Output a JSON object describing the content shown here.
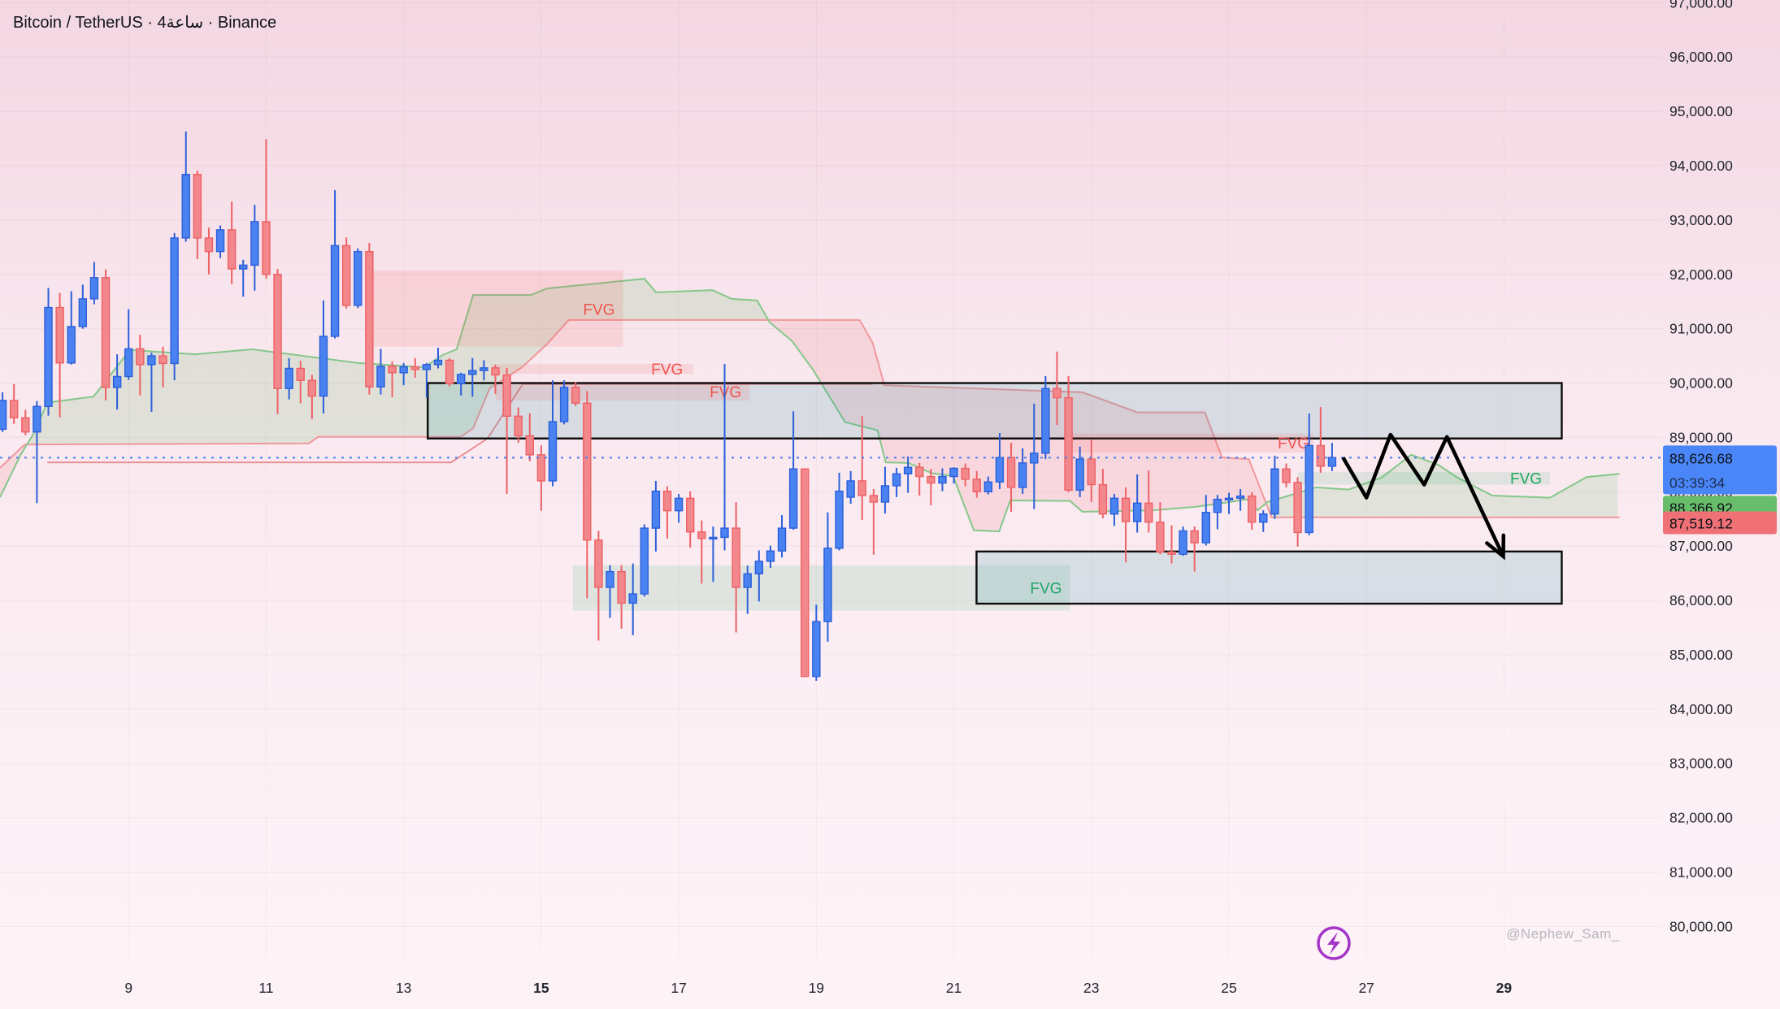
{
  "meta": {
    "symbol_title": "Bitcoin / TetherUS · 4ساعة · Binance",
    "watermark": "@Nephew_Sam_"
  },
  "price_scale_labels": {
    "current_price": "88,626.68",
    "countdown": "03:39:34",
    "indicator_green": "88,366.92",
    "indicator_red": "87,519.12"
  },
  "colors": {
    "bg_top": "#f3d7e2",
    "bg_mid": "#f9e7ee",
    "bg_bottom": "#fdf3f7",
    "up_fill": "#4a83f1",
    "up_border": "#2b5fd9",
    "down_fill": "#f2878c",
    "down_border": "#ee6165",
    "cloud_green_line": "#85c78a",
    "cloud_red_line": "#f0989c",
    "kijun_line": "#e2686c",
    "cloud_green_fill": "#7cc47f",
    "cloud_pink_fill": "#f07f84",
    "teal_box_fill": "#2e99a8",
    "box_border": "#0b0b0b",
    "pink_box_fill": "#ef5350",
    "mint_box_fill": "#2eb56f",
    "dotted_line": "#4a7df0",
    "label_blue_bg": "#4a86f7",
    "label_green_bg": "#68bd6b",
    "label_red_bg": "#ef7175",
    "zigzag": "#000000",
    "lightning": "#a435c8"
  },
  "chart_data": {
    "type": "candlestick",
    "title": "Bitcoin / TetherUS · 4ساعة · Binance",
    "exchange": "Binance",
    "interval": "4h",
    "ylim": [
      78480,
      97050
    ],
    "xlim_days": [
      7.13,
      31.3
    ],
    "y_axis": {
      "min": 80000,
      "max": 97000,
      "step": 1000,
      "tick_format": "#,##0.00"
    },
    "x_axis": {
      "ticks": [
        {
          "t": 9,
          "label": "9"
        },
        {
          "t": 11,
          "label": "11"
        },
        {
          "t": 13,
          "label": "13"
        },
        {
          "t": 15,
          "label": "15",
          "bold": true
        },
        {
          "t": 17,
          "label": "17"
        },
        {
          "t": 19,
          "label": "19"
        },
        {
          "t": 21,
          "label": "21"
        },
        {
          "t": 23,
          "label": "23"
        },
        {
          "t": 25,
          "label": "25"
        },
        {
          "t": 27,
          "label": "27"
        },
        {
          "t": 29,
          "label": "29",
          "bold": true
        }
      ]
    },
    "current_price": 88626.68,
    "indicator_values": {
      "senkou_a": 88366.92,
      "senkou_b": 87519.12
    },
    "candles": {
      "t0": 7.1667,
      "dt": 0.16667,
      "ohlc": [
        [
          89150,
          89830,
          89100,
          89680
        ],
        [
          89680,
          89980,
          89250,
          89360
        ],
        [
          89360,
          89510,
          89040,
          89100
        ],
        [
          89100,
          89670,
          87790,
          89570
        ],
        [
          89570,
          91750,
          89400,
          91390
        ],
        [
          91390,
          91660,
          89370,
          90370
        ],
        [
          90370,
          91690,
          90340,
          91040
        ],
        [
          91040,
          91810,
          91000,
          91550
        ],
        [
          91550,
          92230,
          91450,
          91940
        ],
        [
          91940,
          92090,
          89680,
          89920
        ],
        [
          89920,
          90530,
          89510,
          90120
        ],
        [
          90120,
          91360,
          90060,
          90630
        ],
        [
          90630,
          90890,
          89770,
          90340
        ],
        [
          90340,
          90560,
          89470,
          90500
        ],
        [
          90500,
          90670,
          89920,
          90360
        ],
        [
          90360,
          92760,
          90050,
          92670
        ],
        [
          92670,
          94630,
          92600,
          93840
        ],
        [
          93840,
          93910,
          92280,
          92670
        ],
        [
          92670,
          92860,
          92000,
          92420
        ],
        [
          92420,
          92900,
          92300,
          92820
        ],
        [
          92820,
          93340,
          91820,
          92100
        ],
        [
          92100,
          92270,
          91590,
          92170
        ],
        [
          92170,
          93280,
          91700,
          92970
        ],
        [
          92970,
          94490,
          91920,
          92000
        ],
        [
          92000,
          92100,
          89430,
          89900
        ],
        [
          89900,
          90460,
          89700,
          90270
        ],
        [
          90270,
          90410,
          89630,
          90050
        ],
        [
          90050,
          90150,
          89340,
          89760
        ],
        [
          89760,
          91520,
          89440,
          90860
        ],
        [
          90860,
          93550,
          90820,
          92530
        ],
        [
          92530,
          92680,
          91370,
          91430
        ],
        [
          91430,
          92480,
          91380,
          92420
        ],
        [
          92420,
          92580,
          89790,
          89930
        ],
        [
          89930,
          90630,
          89790,
          90310
        ],
        [
          90310,
          90400,
          89740,
          90190
        ],
        [
          90190,
          90370,
          89960,
          90300
        ],
        [
          90300,
          90460,
          90100,
          90250
        ],
        [
          90250,
          90370,
          89730,
          90340
        ],
        [
          90340,
          90650,
          90270,
          90420
        ],
        [
          90420,
          90460,
          89940,
          89990
        ],
        [
          89990,
          90190,
          89770,
          90160
        ],
        [
          90160,
          90460,
          89750,
          90230
        ],
        [
          90230,
          90420,
          90050,
          90280
        ],
        [
          90280,
          90340,
          89800,
          90150
        ],
        [
          90150,
          90280,
          87960,
          89390
        ],
        [
          89390,
          89550,
          88900,
          89030
        ],
        [
          89030,
          89440,
          88560,
          88680
        ],
        [
          88680,
          88850,
          87650,
          88200
        ],
        [
          88200,
          90050,
          88100,
          89290
        ],
        [
          89290,
          90050,
          89240,
          89920
        ],
        [
          89920,
          90020,
          89580,
          89630
        ],
        [
          89630,
          89850,
          86040,
          87110
        ],
        [
          87110,
          87280,
          85260,
          86240
        ],
        [
          86240,
          86650,
          85680,
          86530
        ],
        [
          86530,
          86650,
          85480,
          85950
        ],
        [
          85950,
          86680,
          85360,
          86120
        ],
        [
          86120,
          87400,
          86070,
          87330
        ],
        [
          87330,
          88200,
          86900,
          88010
        ],
        [
          88010,
          88100,
          87140,
          87650
        ],
        [
          87650,
          87960,
          87430,
          87880
        ],
        [
          87880,
          88010,
          86970,
          87260
        ],
        [
          87260,
          87470,
          86310,
          87140
        ],
        [
          87140,
          87360,
          86340,
          87160
        ],
        [
          87160,
          90350,
          86920,
          87330
        ],
        [
          87330,
          87810,
          85410,
          86240
        ],
        [
          86240,
          86640,
          85750,
          86490
        ],
        [
          86490,
          86920,
          85980,
          86720
        ],
        [
          86720,
          87010,
          86600,
          86910
        ],
        [
          86910,
          87570,
          86790,
          87330
        ],
        [
          87330,
          89480,
          87300,
          88420
        ],
        [
          88420,
          88430,
          84590,
          84600
        ],
        [
          84600,
          85920,
          84520,
          85610
        ],
        [
          85610,
          87620,
          85240,
          86960
        ],
        [
          86960,
          88350,
          86920,
          88010
        ],
        [
          87900,
          88380,
          87780,
          88200
        ],
        [
          88200,
          89390,
          87480,
          87930
        ],
        [
          87930,
          88050,
          86840,
          87810
        ],
        [
          87810,
          88460,
          87600,
          88110
        ],
        [
          88110,
          88440,
          87900,
          88330
        ],
        [
          88330,
          88650,
          87980,
          88450
        ],
        [
          88450,
          88530,
          87930,
          88280
        ],
        [
          88280,
          88420,
          87750,
          88160
        ],
        [
          88160,
          88430,
          88010,
          88280
        ],
        [
          88280,
          88450,
          88150,
          88430
        ],
        [
          88430,
          88520,
          88100,
          88230
        ],
        [
          88230,
          88380,
          87890,
          88000
        ],
        [
          88000,
          88280,
          87950,
          88180
        ],
        [
          88180,
          89080,
          88050,
          88630
        ],
        [
          88630,
          88900,
          87630,
          88080
        ],
        [
          88080,
          88800,
          87960,
          88530
        ],
        [
          88530,
          89620,
          87680,
          88710
        ],
        [
          88710,
          90130,
          88600,
          89900
        ],
        [
          89900,
          90580,
          89230,
          89730
        ],
        [
          89730,
          90130,
          87990,
          88030
        ],
        [
          88030,
          88830,
          87900,
          88600
        ],
        [
          88600,
          88950,
          87810,
          88130
        ],
        [
          88130,
          88420,
          87510,
          87590
        ],
        [
          87590,
          87960,
          87370,
          87880
        ],
        [
          87880,
          88080,
          86700,
          87450
        ],
        [
          87450,
          88320,
          87250,
          87790
        ],
        [
          87790,
          88390,
          87250,
          87440
        ],
        [
          87440,
          87810,
          86850,
          86890
        ],
        [
          86890,
          87380,
          86680,
          86850
        ],
        [
          86850,
          87360,
          86820,
          87280
        ],
        [
          87280,
          87360,
          86530,
          87060
        ],
        [
          87060,
          87940,
          87010,
          87620
        ],
        [
          87620,
          87940,
          87310,
          87860
        ],
        [
          87860,
          87980,
          87590,
          87880
        ],
        [
          87880,
          88050,
          87650,
          87920
        ],
        [
          87920,
          87990,
          87300,
          87440
        ],
        [
          87440,
          87660,
          87260,
          87590
        ],
        [
          87590,
          88660,
          87500,
          88420
        ],
        [
          88420,
          88520,
          88080,
          88170
        ],
        [
          88170,
          88270,
          86990,
          87250
        ],
        [
          87250,
          89440,
          87200,
          88850
        ],
        [
          88850,
          89560,
          88350,
          88470
        ],
        [
          88470,
          88900,
          88380,
          88630
        ]
      ]
    },
    "ichimoku": {
      "senkou_a": [
        [
          7.13,
          87900
        ],
        [
          7.43,
          88680
        ],
        [
          7.61,
          89050
        ],
        [
          7.82,
          89640
        ],
        [
          8.49,
          89750
        ],
        [
          9.02,
          90610
        ],
        [
          9.97,
          90530
        ],
        [
          10.8,
          90620
        ],
        [
          12.33,
          90370
        ],
        [
          13.3,
          90290
        ],
        [
          13.57,
          90520
        ],
        [
          13.77,
          90620
        ],
        [
          14.01,
          91620
        ],
        [
          14.85,
          91620
        ],
        [
          15.08,
          91740
        ],
        [
          16.5,
          91920
        ],
        [
          16.67,
          91670
        ],
        [
          17.49,
          91710
        ],
        [
          17.77,
          91550
        ],
        [
          18.14,
          91520
        ],
        [
          18.32,
          91120
        ],
        [
          18.65,
          90770
        ],
        [
          18.95,
          90250
        ],
        [
          19.42,
          89280
        ],
        [
          19.89,
          89130
        ],
        [
          20.01,
          88540
        ],
        [
          20.34,
          88530
        ],
        [
          20.68,
          88340
        ],
        [
          20.99,
          88290
        ],
        [
          21.29,
          87290
        ],
        [
          21.66,
          87270
        ],
        [
          21.82,
          87840
        ],
        [
          22.69,
          87830
        ],
        [
          22.87,
          87630
        ],
        [
          23.91,
          87660
        ],
        [
          24.5,
          87720
        ],
        [
          25.01,
          87810
        ],
        [
          25.27,
          87860
        ],
        [
          25.42,
          87660
        ],
        [
          25.56,
          87810
        ],
        [
          26.27,
          88080
        ],
        [
          26.74,
          88040
        ],
        [
          27.22,
          88260
        ],
        [
          27.65,
          88680
        ],
        [
          28.04,
          88500
        ],
        [
          28.31,
          88270
        ],
        [
          28.83,
          87930
        ],
        [
          29.67,
          87890
        ],
        [
          30.2,
          88270
        ],
        [
          30.68,
          88330
        ]
      ],
      "senkou_b": [
        [
          7.13,
          88440
        ],
        [
          7.49,
          88870
        ],
        [
          11.62,
          88890
        ],
        [
          11.76,
          89010
        ],
        [
          13.83,
          89010
        ],
        [
          14.01,
          89170
        ],
        [
          14.25,
          89900
        ],
        [
          14.72,
          90290
        ],
        [
          15.08,
          90710
        ],
        [
          15.4,
          91160
        ],
        [
          19.63,
          91160
        ],
        [
          19.82,
          90740
        ],
        [
          19.99,
          89960
        ],
        [
          22.87,
          89830
        ],
        [
          23.67,
          89460
        ],
        [
          24.65,
          89460
        ],
        [
          24.9,
          88630
        ],
        [
          25.29,
          88600
        ],
        [
          25.62,
          87530
        ],
        [
          30.68,
          87530
        ]
      ],
      "kijun": [
        [
          7.82,
          88540
        ],
        [
          13.69,
          88540
        ],
        [
          14.22,
          88980
        ],
        [
          14.73,
          89980
        ],
        [
          19.82,
          89980
        ]
      ]
    },
    "boxes": [
      {
        "kind": "pink",
        "t1": 12.51,
        "p1": 92070,
        "t2": 16.19,
        "p2": 90670,
        "label": "FVG",
        "lt": 15.84,
        "lp": 91360
      },
      {
        "kind": "pink",
        "t1": 14.28,
        "p1": 90350,
        "t2": 17.21,
        "p2": 90170,
        "label": "FVG",
        "lt": 16.83,
        "lp": 90260
      },
      {
        "kind": "mint",
        "t1": 15.46,
        "p1": 86645,
        "t2": 22.69,
        "p2": 85810,
        "label": "FVG",
        "lt": 22.34,
        "lp": 86230
      },
      {
        "kind": "teal",
        "t1": 13.35,
        "p1": 90000,
        "t2": 29.84,
        "p2": 88980,
        "label": null
      },
      {
        "kind": "teal",
        "t1": 21.33,
        "p1": 86900,
        "t2": 29.84,
        "p2": 85940,
        "label": null
      },
      {
        "kind": "pink",
        "t1": 14.34,
        "p1": 89990,
        "t2": 18.03,
        "p2": 89680,
        "label": "FVG",
        "lt": 17.68,
        "lp": 89840
      },
      {
        "kind": "pink",
        "t1": 22.66,
        "p1": 89070,
        "t2": 26.23,
        "p2": 88720,
        "label": "FVG",
        "lt": 25.94,
        "lp": 88900
      },
      {
        "kind": "mint",
        "t1": 26.0,
        "p1": 88360,
        "t2": 29.67,
        "p2": 88130,
        "label": "FVG",
        "lt": 29.32,
        "lp": 88250
      }
    ],
    "drawing": {
      "zigzag": [
        [
          26.66,
          88630
        ],
        [
          27.0,
          87890
        ],
        [
          27.35,
          89050
        ],
        [
          27.84,
          88130
        ],
        [
          28.17,
          89010
        ],
        [
          28.99,
          86810
        ]
      ]
    },
    "legend_position": "none",
    "grid": true
  }
}
